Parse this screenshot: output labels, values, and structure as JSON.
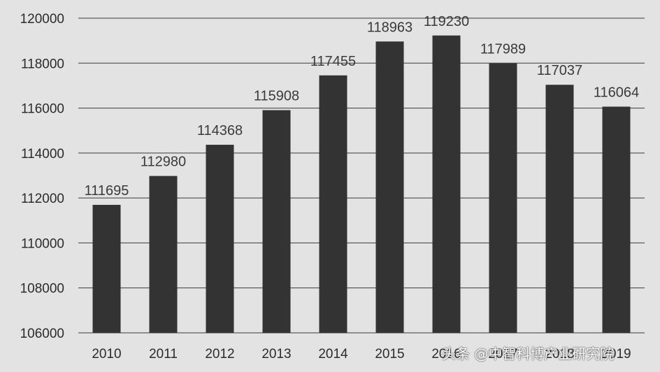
{
  "chart_data": {
    "type": "bar",
    "categories": [
      "2010",
      "2011",
      "2012",
      "2013",
      "2014",
      "2015",
      "2016",
      "2017",
      "2018",
      "2019"
    ],
    "values": [
      111695,
      112980,
      114368,
      115908,
      117455,
      118963,
      119230,
      117989,
      117037,
      116064
    ],
    "data_labels": [
      "111695",
      "112980",
      "114368",
      "115908",
      "117455",
      "118963",
      "119230",
      "117989",
      "117037",
      "116064"
    ],
    "title": "",
    "xlabel": "",
    "ylabel": "",
    "ylim": [
      106000,
      120000
    ],
    "yticks": [
      106000,
      108000,
      110000,
      112000,
      114000,
      116000,
      118000,
      120000
    ],
    "ytick_labels": [
      "106000",
      "108000",
      "110000",
      "112000",
      "114000",
      "116000",
      "118000",
      "120000"
    ],
    "grid": true,
    "legend": "none",
    "bar_color": "#333333",
    "background_color": "#e3e3e3"
  },
  "watermark": {
    "text": "头条 @中智科博产业研究院"
  }
}
